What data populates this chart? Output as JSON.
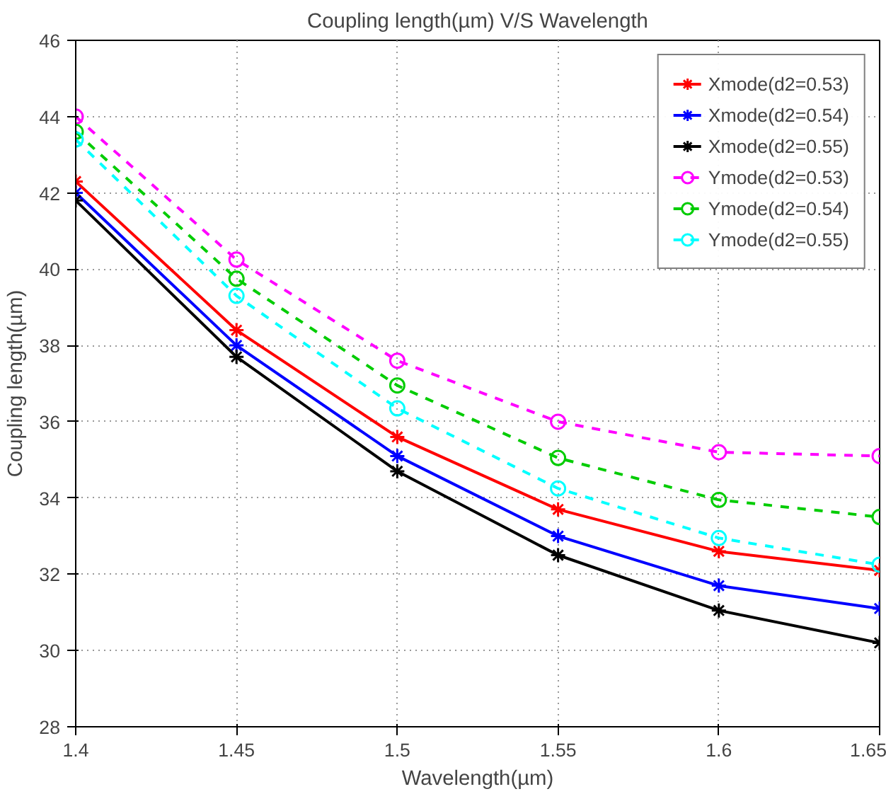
{
  "chart_data": {
    "type": "line",
    "title": "Coupling length(µm) V/S Wavelength",
    "xlabel": "Wavelength(µm)",
    "ylabel": "Coupling length(µm)",
    "x": [
      1.4,
      1.45,
      1.5,
      1.55,
      1.6,
      1.65
    ],
    "xlim": [
      1.4,
      1.65
    ],
    "xticks": [
      1.4,
      1.45,
      1.5,
      1.55,
      1.6,
      1.65
    ],
    "ylim": [
      28,
      46
    ],
    "yticks": [
      28,
      30,
      32,
      34,
      36,
      38,
      40,
      42,
      44,
      46
    ],
    "grid": true,
    "legend": "top right",
    "series": [
      {
        "name": "Xmode(d2=0.53)",
        "color": "#ff0000",
        "marker": "cross",
        "line_style": "solid",
        "values": [
          42.3,
          38.4,
          35.6,
          33.7,
          32.6,
          32.1
        ]
      },
      {
        "name": "Xmode(d2=0.54)",
        "color": "#0000ff",
        "marker": "cross",
        "line_style": "solid",
        "values": [
          42.0,
          38.0,
          35.1,
          33.0,
          31.7,
          31.1
        ]
      },
      {
        "name": "Xmode(d2=0.55)",
        "color": "#000000",
        "marker": "cross",
        "line_style": "solid",
        "values": [
          41.8,
          37.7,
          34.7,
          32.5,
          31.05,
          30.2
        ]
      },
      {
        "name": "Ymode(d2=0.53)",
        "color": "#ff00ff",
        "marker": "circle",
        "line_style": "dashed",
        "values": [
          44.0,
          40.25,
          37.6,
          36.0,
          35.2,
          35.1
        ]
      },
      {
        "name": "Ymode(d2=0.54)",
        "color": "#00cc00",
        "marker": "circle",
        "line_style": "dashed",
        "values": [
          43.6,
          39.75,
          36.95,
          35.05,
          33.95,
          33.5
        ]
      },
      {
        "name": "Ymode(d2=0.55)",
        "color": "#00ffff",
        "marker": "circle",
        "line_style": "dashed",
        "values": [
          43.4,
          39.3,
          36.35,
          34.25,
          32.95,
          32.25
        ]
      }
    ]
  }
}
